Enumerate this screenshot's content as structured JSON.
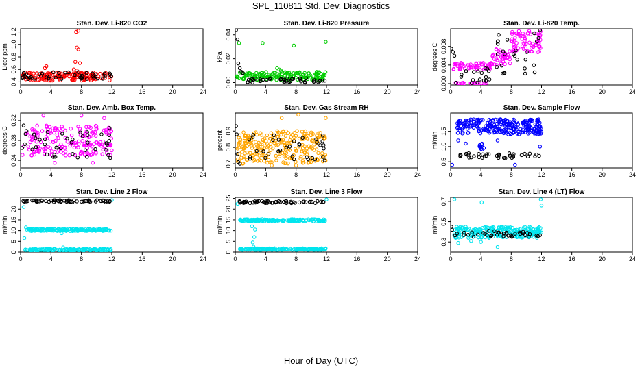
{
  "figure": {
    "title": "SPL_110811  Std. Dev. Diagnostics",
    "xlabel": "Hour of Day (UTC)"
  },
  "colors": {
    "black": "#000000",
    "red": "#ff0000",
    "green": "#00cc00",
    "magenta": "#ff00ff",
    "orange": "#ffa500",
    "blue": "#0000ff",
    "cyan": "#00e5ee"
  },
  "chart_data": [
    {
      "type": "scatter",
      "title": "Stan. Dev. Li-820 CO2",
      "ylabel": "Licor ppm",
      "xlim": [
        0,
        24
      ],
      "ylim": [
        0.35,
        1.25
      ],
      "xticks": [
        0,
        4,
        8,
        12,
        16,
        20,
        24
      ],
      "yticks": [
        0.4,
        0.6,
        0.8,
        1.0,
        1.2
      ],
      "series": [
        {
          "color": "red",
          "bands": [
            {
              "x0": 0.1,
              "x1": 12.0,
              "y0": 0.42,
              "y1": 0.55,
              "n": 160
            }
          ],
          "points": [
            [
              7.3,
              1.2
            ],
            [
              7.6,
              1.22
            ],
            [
              7.4,
              0.95
            ],
            [
              7.6,
              0.92
            ],
            [
              7.2,
              0.72
            ],
            [
              7.8,
              0.7
            ],
            [
              3.4,
              0.65
            ],
            [
              3.2,
              0.62
            ],
            [
              7.0,
              0.6
            ],
            [
              7.4,
              0.58
            ]
          ]
        },
        {
          "color": "black",
          "bands": [
            {
              "x0": 0.1,
              "x1": 12.0,
              "y0": 0.44,
              "y1": 0.56,
              "n": 45
            }
          ],
          "points": []
        }
      ]
    },
    {
      "type": "scatter",
      "title": "Stan. Dev. Li-820 Pressure",
      "ylabel": "kPa",
      "xlim": [
        0,
        24
      ],
      "ylim": [
        -0.002,
        0.045
      ],
      "xticks": [
        0,
        4,
        8,
        12,
        16,
        20,
        24
      ],
      "yticks": [
        0.0,
        0.02,
        0.04
      ],
      "series": [
        {
          "color": "green",
          "bands": [
            {
              "x0": 0.2,
              "x1": 12.0,
              "y0": 0.002,
              "y1": 0.009,
              "n": 170
            }
          ],
          "points": [
            [
              0.5,
              0.033
            ],
            [
              3.6,
              0.033
            ],
            [
              7.7,
              0.031
            ],
            [
              11.9,
              0.034
            ],
            [
              5.5,
              0.012
            ],
            [
              5.8,
              0.011
            ],
            [
              6.0,
              0.01
            ]
          ]
        },
        {
          "color": "black",
          "bands": [
            {
              "x0": 1.5,
              "x1": 12.0,
              "y0": 0.0,
              "y1": 0.004,
              "n": 40
            }
          ],
          "points": [
            [
              0.1,
              0.044
            ],
            [
              0.3,
              0.036
            ],
            [
              0.4,
              0.016
            ],
            [
              0.6,
              0.012
            ],
            [
              0.8,
              0.009
            ],
            [
              1.0,
              0.008
            ]
          ]
        }
      ]
    },
    {
      "type": "scatter",
      "title": "Stan. Dev. Li-820 Temp.",
      "ylabel": "degrees C",
      "xlim": [
        0,
        24
      ],
      "ylim": [
        -0.0003,
        0.0118
      ],
      "xticks": [
        0,
        4,
        8,
        12,
        16,
        20,
        24
      ],
      "yticks": [
        0.0,
        0.004,
        0.008
      ],
      "series": [
        {
          "color": "magenta",
          "bands": [
            {
              "x0": 0.3,
              "x1": 5.5,
              "y0": 0.003,
              "y1": 0.0045,
              "n": 55
            },
            {
              "x0": 5.5,
              "x1": 8.0,
              "y0": 0.004,
              "y1": 0.0075,
              "n": 40
            },
            {
              "x0": 8.0,
              "x1": 12.0,
              "y0": 0.0065,
              "y1": 0.0115,
              "n": 70
            },
            {
              "x0": 0.3,
              "x1": 5.0,
              "y0": 0.0,
              "y1": 0.0002,
              "n": 20
            }
          ],
          "points": []
        },
        {
          "color": "black",
          "bands": [
            {
              "x0": 0.5,
              "x1": 5.5,
              "y0": 0.0,
              "y1": 0.0035,
              "n": 18
            },
            {
              "x0": 6.0,
              "x1": 12.0,
              "y0": 0.002,
              "y1": 0.011,
              "n": 26
            }
          ],
          "points": [
            [
              0.1,
              0.0075
            ],
            [
              0.3,
              0.0068
            ],
            [
              0.5,
              0.006
            ],
            [
              11.8,
              0.0115
            ]
          ]
        }
      ]
    },
    {
      "type": "scatter",
      "title": "Stan. Dev. Amb. Box Temp.",
      "ylabel": "degrees C",
      "xlim": [
        0,
        24
      ],
      "ylim": [
        0.225,
        0.335
      ],
      "xticks": [
        0,
        4,
        8,
        12,
        16,
        20,
        24
      ],
      "yticks": [
        0.24,
        0.28,
        0.32
      ],
      "series": [
        {
          "color": "magenta",
          "bands": [
            {
              "x0": 0.2,
              "x1": 12.0,
              "y0": 0.25,
              "y1": 0.31,
              "n": 190
            }
          ],
          "points": [
            [
              3.0,
              0.33
            ],
            [
              8.0,
              0.33
            ],
            [
              11.0,
              0.325
            ],
            [
              4.5,
              0.235
            ],
            [
              9.5,
              0.235
            ]
          ]
        },
        {
          "color": "black",
          "bands": [
            {
              "x0": 0.2,
              "x1": 12.0,
              "y0": 0.245,
              "y1": 0.3,
              "n": 40
            }
          ],
          "points": [
            [
              0.4,
              0.31
            ],
            [
              0.2,
              0.265
            ],
            [
              11.8,
              0.245
            ],
            [
              11.7,
              0.305
            ]
          ]
        }
      ]
    },
    {
      "type": "scatter",
      "title": "Stan. Dev. Gas Stream RH",
      "ylabel": "percent",
      "xlim": [
        0,
        24
      ],
      "ylim": [
        0.675,
        1.01
      ],
      "xticks": [
        0,
        4,
        8,
        12,
        16,
        20,
        24
      ],
      "yticks": [
        0.7,
        0.8,
        0.9
      ],
      "series": [
        {
          "color": "orange",
          "bands": [
            {
              "x0": 0.3,
              "x1": 12.0,
              "y0": 0.7,
              "y1": 0.9,
              "n": 260
            }
          ],
          "points": [
            [
              8.3,
              1.0
            ],
            [
              11.9,
              0.98
            ],
            [
              6.1,
              0.98
            ],
            [
              4.8,
              0.69
            ],
            [
              8.0,
              0.69
            ]
          ]
        },
        {
          "color": "black",
          "bands": [
            {
              "x0": 1.0,
              "x1": 12.0,
              "y0": 0.72,
              "y1": 0.88,
              "n": 35
            }
          ],
          "points": [
            [
              0.1,
              0.93
            ],
            [
              0.2,
              0.88
            ],
            [
              0.3,
              0.76
            ],
            [
              0.4,
              0.71
            ],
            [
              0.6,
              0.7
            ]
          ]
        }
      ]
    },
    {
      "type": "scatter",
      "title": "Stan. Dev. Sample Flow",
      "ylabel": "ml/min",
      "xlim": [
        0,
        24
      ],
      "ylim": [
        0.3,
        2.1
      ],
      "xticks": [
        0,
        4,
        8,
        12,
        16,
        20,
        24
      ],
      "yticks": [
        0.5,
        1.0,
        1.5
      ],
      "series": [
        {
          "color": "blue",
          "bands": [
            {
              "x0": 0.8,
              "x1": 12.0,
              "y0": 1.4,
              "y1": 1.9,
              "n": 260
            },
            {
              "x0": 3.8,
              "x1": 4.4,
              "y0": 0.9,
              "y1": 1.1,
              "n": 12
            }
          ],
          "points": [
            [
              1.0,
              1.2
            ],
            [
              2.0,
              1.1
            ],
            [
              8.5,
              0.4
            ],
            [
              0.2,
              0.4
            ],
            [
              11.8,
              1.0
            ],
            [
              6.2,
              1.2
            ]
          ]
        },
        {
          "color": "black",
          "bands": [
            {
              "x0": 0.2,
              "x1": 12.0,
              "y0": 0.62,
              "y1": 0.78,
              "n": 38
            }
          ],
          "points": []
        }
      ]
    },
    {
      "type": "scatter",
      "title": "Stan. Dev. Line 2 Flow",
      "ylabel": "ml/min",
      "xlim": [
        0,
        24
      ],
      "ylim": [
        0,
        25.5
      ],
      "xticks": [
        0,
        4,
        8,
        12,
        16,
        20,
        24
      ],
      "yticks": [
        0,
        5,
        10,
        15,
        20
      ],
      "series": [
        {
          "color": "cyan",
          "bands": [
            {
              "x0": 0.8,
              "x1": 11.9,
              "y0": 9.8,
              "y1": 10.8,
              "n": 160
            },
            {
              "x0": 0.6,
              "x1": 11.9,
              "y0": 0.7,
              "y1": 1.5,
              "n": 160
            }
          ],
          "points": [
            [
              0.4,
              21.0
            ],
            [
              0.5,
              6.5
            ],
            [
              0.7,
              11.5
            ],
            [
              5.6,
              2.2
            ],
            [
              5.4,
              8.8
            ],
            [
              12.0,
              24.2
            ]
          ]
        },
        {
          "color": "black",
          "bands": [
            {
              "x0": 0.2,
              "x1": 12.0,
              "y0": 23.2,
              "y1": 24.2,
              "n": 55
            }
          ],
          "points": []
        }
      ]
    },
    {
      "type": "scatter",
      "title": "Stan. Dev. Line 3 Flow",
      "ylabel": "ml/min",
      "xlim": [
        0,
        24
      ],
      "ylim": [
        0,
        25.5
      ],
      "xticks": [
        0,
        4,
        8,
        12,
        16,
        20,
        24
      ],
      "yticks": [
        0,
        5,
        10,
        15,
        20,
        25
      ],
      "series": [
        {
          "color": "cyan",
          "bands": [
            {
              "x0": 0.6,
              "x1": 11.9,
              "y0": 14.3,
              "y1": 15.3,
              "n": 170
            },
            {
              "x0": 0.6,
              "x1": 11.9,
              "y0": 1.0,
              "y1": 1.8,
              "n": 160
            }
          ],
          "points": [
            [
              0.3,
              22.5
            ],
            [
              2.5,
              7.0
            ],
            [
              2.3,
              4.5
            ],
            [
              2.6,
              10.5
            ],
            [
              2.2,
              12.0
            ],
            [
              2.4,
              2.5
            ],
            [
              12.0,
              24.5
            ]
          ]
        },
        {
          "color": "black",
          "bands": [
            {
              "x0": 0.2,
              "x1": 12.0,
              "y0": 22.8,
              "y1": 23.8,
              "n": 55
            }
          ],
          "points": []
        }
      ]
    },
    {
      "type": "scatter",
      "title": "Stan. Dev. Line 4 (LT) Flow",
      "ylabel": "ml/min",
      "xlim": [
        0,
        24
      ],
      "ylim": [
        0.2,
        0.74
      ],
      "xticks": [
        0,
        4,
        8,
        12,
        16,
        20,
        24
      ],
      "yticks": [
        0.3,
        0.5,
        0.7
      ],
      "series": [
        {
          "color": "cyan",
          "bands": [
            {
              "x0": 0.4,
              "x1": 12.0,
              "y0": 0.34,
              "y1": 0.45,
              "n": 230
            }
          ],
          "points": [
            [
              0.5,
              0.72
            ],
            [
              4.1,
              0.69
            ],
            [
              11.9,
              0.72
            ],
            [
              12.0,
              0.66
            ],
            [
              1.0,
              0.29
            ],
            [
              2.7,
              0.31
            ],
            [
              6.2,
              0.25
            ],
            [
              4.0,
              0.3
            ]
          ]
        },
        {
          "color": "black",
          "bands": [
            {
              "x0": 0.4,
              "x1": 12.0,
              "y0": 0.35,
              "y1": 0.41,
              "n": 40
            }
          ],
          "points": [
            [
              0.1,
              0.45
            ],
            [
              0.2,
              0.42
            ]
          ]
        }
      ]
    }
  ]
}
